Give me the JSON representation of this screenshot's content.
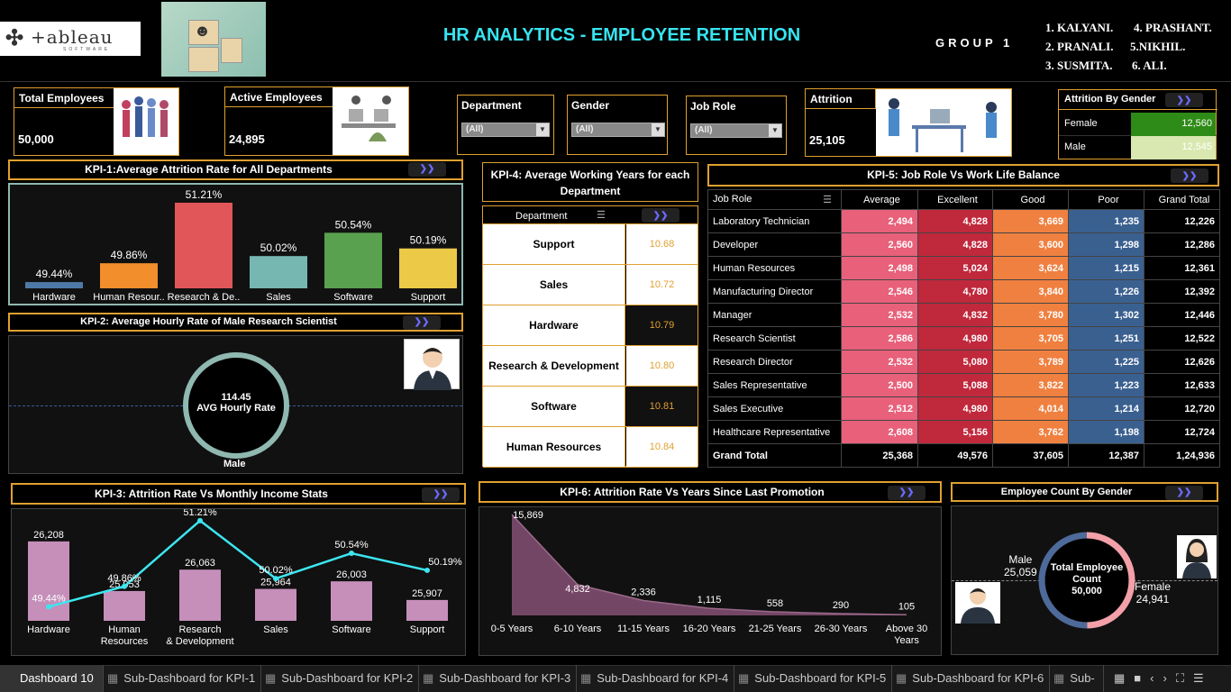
{
  "header": {
    "logo_text": "+ableau",
    "logo_sub": "SOFTWARE",
    "title": "HR ANALYTICS - EMPLOYEE RETENTION",
    "group": "GROUP 1",
    "members": [
      "1. KALYANI.",
      "4. PRASHANT.",
      "2. PRANALI.",
      "5.NIKHIL.",
      "3. SUSMITA.",
      "6. ALI."
    ]
  },
  "kpis": {
    "total_label": "Total Employees",
    "total_value": "50,000",
    "active_label": "Active Employees",
    "active_value": "24,895",
    "attrition_label": "Attrition",
    "attrition_value": "25,105"
  },
  "filters": [
    {
      "label": "Department",
      "value": "(All)"
    },
    {
      "label": "Gender",
      "value": "(All)"
    },
    {
      "label": "Job Role",
      "value": "(All)"
    }
  ],
  "attrition_gender": {
    "title": "Attrition By Gender",
    "rows": [
      {
        "label": "Female",
        "value": "12,560",
        "color": "#2e8b17"
      },
      {
        "label": "Male",
        "value": "12,545",
        "color": "#d8e8b0"
      }
    ]
  },
  "kpi1": {
    "title": "KPI-1:Average Attrition Rate for All Departments"
  },
  "kpi2": {
    "title": "KPI-2: Average Hourly Rate of Male Research Scientist",
    "value": "114.45",
    "label": "AVG Hourly Rate",
    "footer": "Male"
  },
  "kpi3": {
    "title": "KPI-3: Attrition Rate Vs Monthly Income Stats"
  },
  "kpi4": {
    "title": "KPI-4: Average Working Years for each Department",
    "col": "Department",
    "rows": [
      {
        "dept": "Support",
        "value": "10.68",
        "dark": false
      },
      {
        "dept": "Sales",
        "value": "10.72",
        "dark": false
      },
      {
        "dept": "Hardware",
        "value": "10.79",
        "dark": true
      },
      {
        "dept": "Research & Development",
        "value": "10.80",
        "dark": false
      },
      {
        "dept": "Software",
        "value": "10.81",
        "dark": true
      },
      {
        "dept": "Human Resources",
        "value": "10.84",
        "dark": false
      }
    ]
  },
  "kpi5": {
    "title": "KPI-5: Job Role Vs Work Life Balance",
    "headers": [
      "Job Role",
      "Average",
      "Excellent",
      "Good",
      "Poor",
      "Grand Total"
    ],
    "rows": [
      [
        "Laboratory Technician",
        "2,494",
        "4,828",
        "3,669",
        "1,235",
        "12,226"
      ],
      [
        "Developer",
        "2,560",
        "4,828",
        "3,600",
        "1,298",
        "12,286"
      ],
      [
        "Human Resources",
        "2,498",
        "5,024",
        "3,624",
        "1,215",
        "12,361"
      ],
      [
        "Manufacturing Director",
        "2,546",
        "4,780",
        "3,840",
        "1,226",
        "12,392"
      ],
      [
        "Manager",
        "2,532",
        "4,832",
        "3,780",
        "1,302",
        "12,446"
      ],
      [
        "Research Scientist",
        "2,586",
        "4,980",
        "3,705",
        "1,251",
        "12,522"
      ],
      [
        "Research Director",
        "2,532",
        "5,080",
        "3,789",
        "1,225",
        "12,626"
      ],
      [
        "Sales Representative",
        "2,500",
        "5,088",
        "3,822",
        "1,223",
        "12,633"
      ],
      [
        "Sales Executive",
        "2,512",
        "4,980",
        "4,014",
        "1,214",
        "12,720"
      ],
      [
        "Healthcare Representative",
        "2,608",
        "5,156",
        "3,762",
        "1,198",
        "12,724"
      ]
    ],
    "total": [
      "Grand Total",
      "25,368",
      "49,576",
      "37,605",
      "12,387",
      "1,24,936"
    ],
    "colors": {
      "avg": "#e8607a",
      "exc": "#c0283c",
      "good": "#f08040",
      "poor": "#3a6090"
    }
  },
  "kpi6": {
    "title": "KPI-6: Attrition  Rate Vs Years Since Last Promotion"
  },
  "gender_count": {
    "title": "Employee Count By Gender",
    "center1": "Total Employee",
    "center2": "Count",
    "center3": "50,000",
    "male_label": "Male",
    "male_value": "25,059",
    "female_label": "Female",
    "female_value": "24,941"
  },
  "tabs": [
    "Dashboard 10",
    "Sub-Dashboard for KPI-1",
    "Sub-Dashboard for KPI-2",
    "Sub-Dashboard for KPI-3",
    "Sub-Dashboard for KPI-4",
    "Sub-Dashboard for KPI-5",
    "Sub-Dashboard for KPI-6",
    "Sub-D"
  ],
  "chart_data": [
    {
      "type": "bar",
      "id": "kpi1",
      "categories": [
        "Hardware",
        "Human Resour..",
        "Research & De..",
        "Sales",
        "Software",
        "Support"
      ],
      "values": [
        49.44,
        49.86,
        51.21,
        50.02,
        50.54,
        50.19
      ],
      "labels": [
        "49.44%",
        "49.86%",
        "51.21%",
        "50.02%",
        "50.54%",
        "50.19%"
      ],
      "colors": [
        "#4e79a7",
        "#f28e2b",
        "#e15759",
        "#76b7b2",
        "#59a14f",
        "#edc948"
      ]
    },
    {
      "type": "bar",
      "id": "kpi3",
      "categories": [
        "Hardware",
        "Human Resources",
        "Research & Development",
        "Sales",
        "Software",
        "Support"
      ],
      "bar_values": [
        26208,
        25953,
        26063,
        25964,
        26003,
        25907
      ],
      "bar_labels": [
        "26,208",
        "25,953",
        "26,063",
        "25,964",
        "26,003",
        "25,907"
      ],
      "line_values": [
        49.44,
        49.86,
        51.21,
        50.02,
        50.54,
        50.19
      ],
      "line_labels": [
        "49.44%",
        "49.86%",
        "51.21%",
        "50.02%",
        "50.54%",
        "50.19%"
      ]
    },
    {
      "type": "area",
      "id": "kpi6",
      "categories": [
        "0-5 Years",
        "6-10 Years",
        "11-15 Years",
        "16-20 Years",
        "21-25 Years",
        "26-30 Years",
        "Above 30 Years"
      ],
      "values": [
        15869,
        4832,
        2336,
        1115,
        558,
        290,
        105
      ],
      "labels": [
        "15,869",
        "4,832",
        "2,336",
        "1,115",
        "558",
        "290",
        "105"
      ]
    },
    {
      "type": "pie",
      "id": "gender",
      "categories": [
        "Male",
        "Female"
      ],
      "values": [
        25059,
        24941
      ],
      "colors": [
        "#4e6a9a",
        "#f4a0a8"
      ]
    }
  ]
}
